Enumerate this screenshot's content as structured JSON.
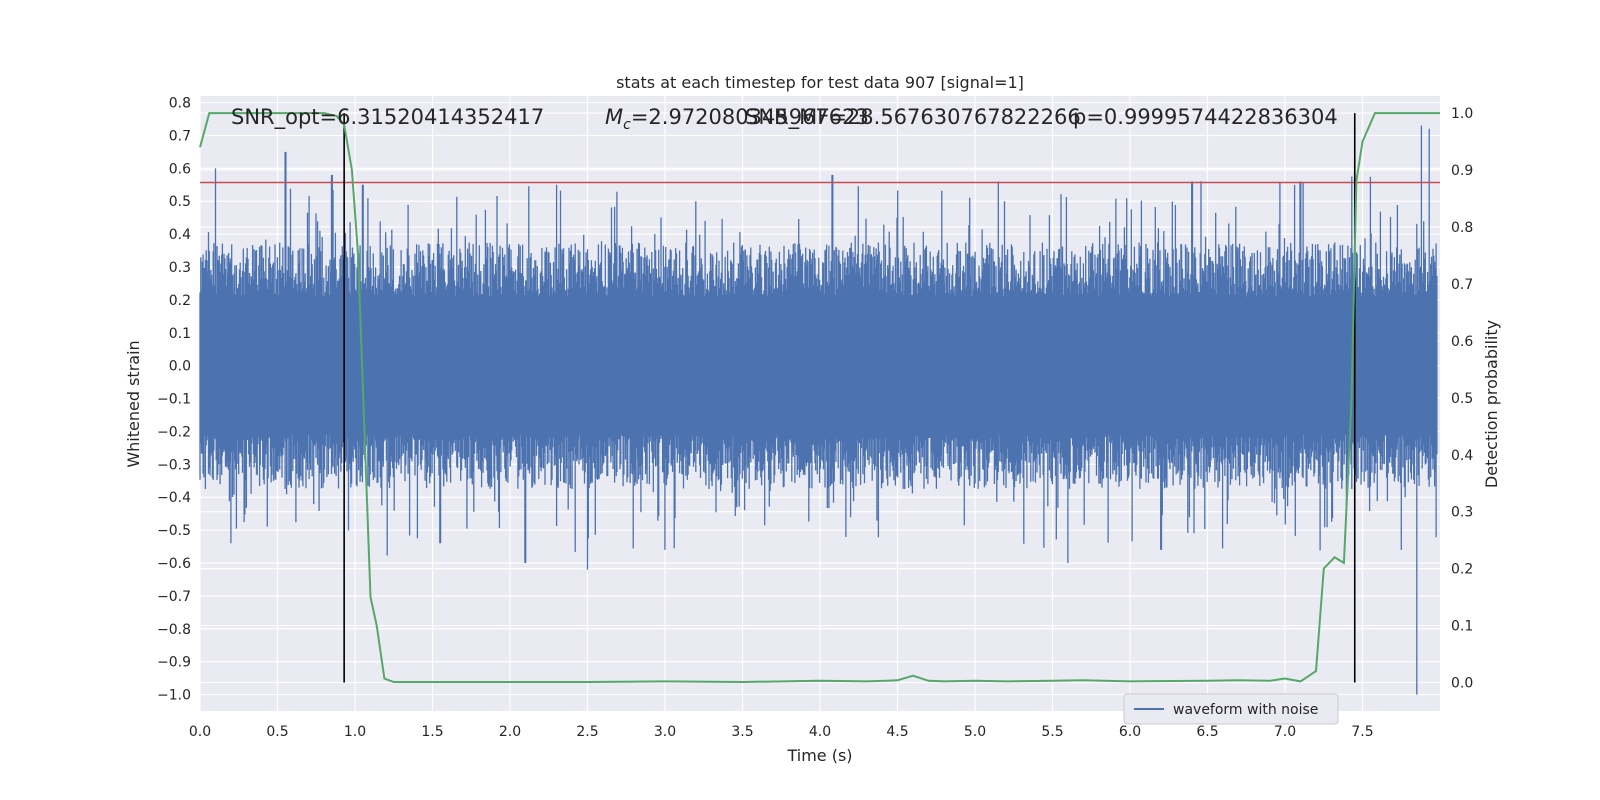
{
  "chart_data": {
    "type": "line",
    "title": "stats at each timestep for test data 907 [signal=1]",
    "xlabel": "Time (s)",
    "ylabel_left": "Whitened strain",
    "ylabel_right": "Detection probability",
    "xlim": [
      0.0,
      8.0
    ],
    "ylim_left": [
      -1.05,
      0.82
    ],
    "ylim_right": [
      -0.05,
      1.03
    ],
    "x_ticks": [
      "0.0",
      "0.5",
      "1.0",
      "1.5",
      "2.0",
      "2.5",
      "3.0",
      "3.5",
      "4.0",
      "4.5",
      "5.0",
      "5.5",
      "6.0",
      "6.5",
      "7.0",
      "7.5"
    ],
    "y_ticks_left": [
      "0.8",
      "0.7",
      "0.6",
      "0.5",
      "0.4",
      "0.3",
      "0.2",
      "0.1",
      "0.0",
      "−0.1",
      "−0.2",
      "−0.3",
      "−0.4",
      "−0.5",
      "−0.6",
      "−0.7",
      "−0.8",
      "−0.9",
      "−1.0"
    ],
    "y_ticks_right": [
      "1.0",
      "0.9",
      "0.8",
      "0.7",
      "0.6",
      "0.5",
      "0.4",
      "0.3",
      "0.2",
      "0.1",
      "0.0"
    ],
    "grid": true,
    "legend": {
      "position": "bottom-right",
      "entries": [
        "waveform with noise"
      ]
    },
    "annotations": {
      "snr": "SNR_opt=6.31520414352417",
      "mc_symbol": "M",
      "mc_sub": "c",
      "mc_value": "=2.972080345967623",
      "snr_mf": "SNR_MF=28.567630767822266",
      "p_value": "p=0.9999574422836304"
    },
    "threshold_line": {
      "y": 0.557,
      "color": "#c44e52"
    },
    "vertical_lines": [
      0.93,
      7.45
    ],
    "detection_probability": {
      "color": "#55a868",
      "x": [
        0.0,
        0.06,
        0.2,
        0.4,
        0.6,
        0.8,
        0.88,
        0.93,
        0.98,
        1.02,
        1.06,
        1.1,
        1.14,
        1.19,
        1.25,
        1.5,
        2.0,
        2.5,
        3.0,
        3.5,
        4.0,
        4.3,
        4.5,
        4.6,
        4.7,
        4.8,
        5.0,
        5.2,
        5.5,
        5.7,
        6.0,
        6.5,
        6.7,
        6.9,
        7.0,
        7.1,
        7.2,
        7.25,
        7.32,
        7.38,
        7.43,
        7.46,
        7.5,
        7.58,
        7.7,
        7.9,
        8.0
      ],
      "y": [
        0.94,
        1.0,
        1.0,
        1.0,
        1.0,
        1.0,
        0.995,
        0.98,
        0.9,
        0.75,
        0.45,
        0.15,
        0.1,
        0.007,
        0.001,
        0.001,
        0.001,
        0.001,
        0.002,
        0.001,
        0.003,
        0.002,
        0.004,
        0.012,
        0.003,
        0.002,
        0.003,
        0.002,
        0.003,
        0.004,
        0.002,
        0.003,
        0.004,
        0.003,
        0.007,
        0.002,
        0.02,
        0.2,
        0.22,
        0.21,
        0.5,
        0.88,
        0.95,
        1.0,
        1.0,
        1.0,
        1.0
      ]
    },
    "waveform": {
      "name": "waveform with noise",
      "color": "#4c72b0",
      "samples": 1600,
      "typical_upper": 0.3,
      "typical_lower": -0.3,
      "peaks": [
        {
          "x": 0.1,
          "y": 0.6
        },
        {
          "x": 0.55,
          "y": 0.65
        },
        {
          "x": 0.85,
          "y": 0.58
        },
        {
          "x": 1.05,
          "y": 0.55
        },
        {
          "x": 2.3,
          "y": 0.55
        },
        {
          "x": 4.08,
          "y": 0.58
        },
        {
          "x": 5.15,
          "y": 0.56
        },
        {
          "x": 6.4,
          "y": 0.56
        },
        {
          "x": 7.1,
          "y": 0.56
        },
        {
          "x": 7.88,
          "y": 0.73
        },
        {
          "x": 7.93,
          "y": 0.72
        },
        {
          "x": 0.2,
          "y": -0.54
        },
        {
          "x": 1.55,
          "y": -0.54
        },
        {
          "x": 2.1,
          "y": -0.6
        },
        {
          "x": 2.5,
          "y": -0.62
        },
        {
          "x": 3.0,
          "y": -0.56
        },
        {
          "x": 5.6,
          "y": -0.6
        },
        {
          "x": 6.2,
          "y": -0.56
        },
        {
          "x": 7.75,
          "y": -0.56
        },
        {
          "x": 7.85,
          "y": -1.0
        }
      ]
    }
  }
}
